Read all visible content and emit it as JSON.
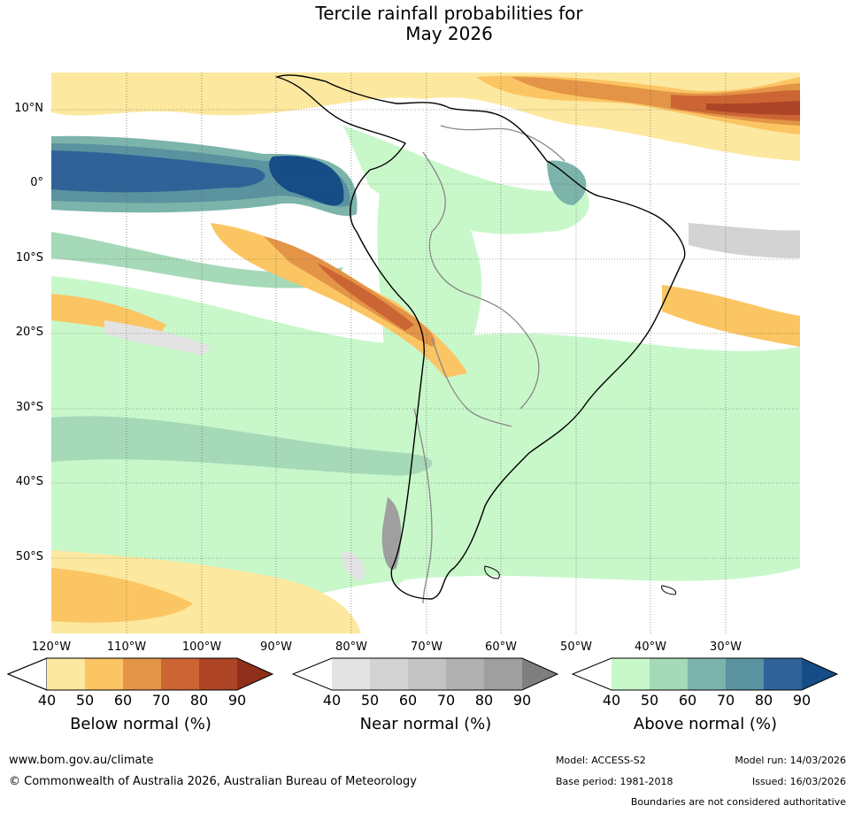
{
  "title": {
    "line1": "Tercile rainfall probabilities for",
    "line2": "May 2026"
  },
  "map": {
    "latitude_labels": [
      "10°N",
      "0°",
      "10°S",
      "20°S",
      "30°S",
      "40°S",
      "50°S"
    ],
    "longitude_labels": [
      "120°W",
      "110°W",
      "100°W",
      "90°W",
      "80°W",
      "70°W",
      "60°W",
      "50°W",
      "40°W",
      "30°W"
    ]
  },
  "legends": [
    {
      "title": "Below normal (%)",
      "ticks": [
        "40",
        "50",
        "60",
        "70",
        "80",
        "90"
      ],
      "colors": [
        "#ffffff",
        "#fde89f",
        "#fcc563",
        "#e39446",
        "#cc6534",
        "#ac4425",
        "#8e2f1b"
      ]
    },
    {
      "title": "Near normal (%)",
      "ticks": [
        "40",
        "50",
        "60",
        "70",
        "80",
        "90"
      ],
      "colors": [
        "#ffffff",
        "#e3e3e3",
        "#d3d3d3",
        "#c3c3c3",
        "#b1b1b1",
        "#9f9f9f",
        "#7f7f7f"
      ]
    },
    {
      "title": "Above normal (%)",
      "ticks": [
        "40",
        "50",
        "60",
        "70",
        "80",
        "90"
      ],
      "colors": [
        "#ffffff",
        "#c8f8ca",
        "#a5d9b7",
        "#7cb4ab",
        "#5a92a0",
        "#2e6298",
        "#164d86"
      ]
    }
  ],
  "footer": {
    "url": "www.bom.gov.au/climate",
    "copyright": "© Commonwealth of Australia 2026, Australian Bureau of Meteorology",
    "model": "Model: ACCESS-S2",
    "base_period": "Base period: 1981-2018",
    "model_run": "Model run: 14/03/2026",
    "issued": "Issued: 16/03/2026",
    "disclaimer": "Boundaries are not considered authoritative"
  }
}
